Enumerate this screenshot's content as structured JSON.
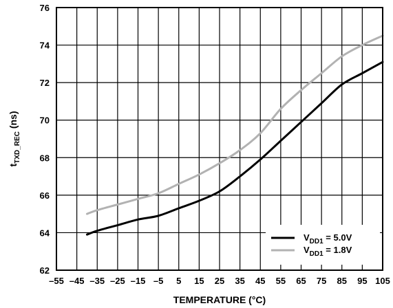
{
  "chart_data": {
    "type": "line",
    "title": "",
    "xlabel": "TEMPERATURE (°C)",
    "ylabel": {
      "main": "t",
      "subscript": "TXD_REC",
      "unit": "(ns)"
    },
    "xlim": [
      -55,
      105
    ],
    "ylim": [
      62,
      76
    ],
    "x_ticks": [
      -55,
      -45,
      -35,
      -25,
      -15,
      -5,
      5,
      15,
      25,
      35,
      45,
      55,
      65,
      75,
      85,
      95,
      105
    ],
    "x_tick_labels": [
      "–55",
      "–45",
      "–35",
      "–25",
      "–15",
      "–5",
      "5",
      "15",
      "25",
      "35",
      "45",
      "55",
      "65",
      "75",
      "85",
      "95",
      "105"
    ],
    "y_ticks": [
      62,
      64,
      66,
      68,
      70,
      72,
      74,
      76
    ],
    "y_tick_labels": [
      "62",
      "64",
      "66",
      "68",
      "70",
      "72",
      "74",
      "76"
    ],
    "grid": true,
    "legend_position": "bottom-right",
    "series": [
      {
        "name": "5.0V",
        "legend_label": {
          "prefix": "V",
          "subscript": "DD1",
          "suffix": " = 5.0V"
        },
        "color": "#000000",
        "x": [
          -40,
          -35,
          -25,
          -15,
          -5,
          5,
          15,
          25,
          35,
          45,
          55,
          65,
          75,
          85,
          95,
          105
        ],
        "values": [
          63.9,
          64.1,
          64.4,
          64.7,
          64.9,
          65.3,
          65.7,
          66.2,
          67.0,
          67.9,
          68.9,
          69.9,
          70.9,
          71.9,
          72.5,
          73.1
        ]
      },
      {
        "name": "1.8V",
        "legend_label": {
          "prefix": "V",
          "subscript": "DD1",
          "suffix": " = 1.8V"
        },
        "color": "#b2b2b2",
        "x": [
          -40,
          -35,
          -25,
          -15,
          -5,
          5,
          15,
          25,
          35,
          45,
          55,
          65,
          75,
          85,
          95,
          105
        ],
        "values": [
          65.0,
          65.2,
          65.5,
          65.8,
          66.1,
          66.6,
          67.1,
          67.7,
          68.4,
          69.3,
          70.6,
          71.6,
          72.5,
          73.4,
          74.0,
          74.5
        ]
      }
    ]
  }
}
